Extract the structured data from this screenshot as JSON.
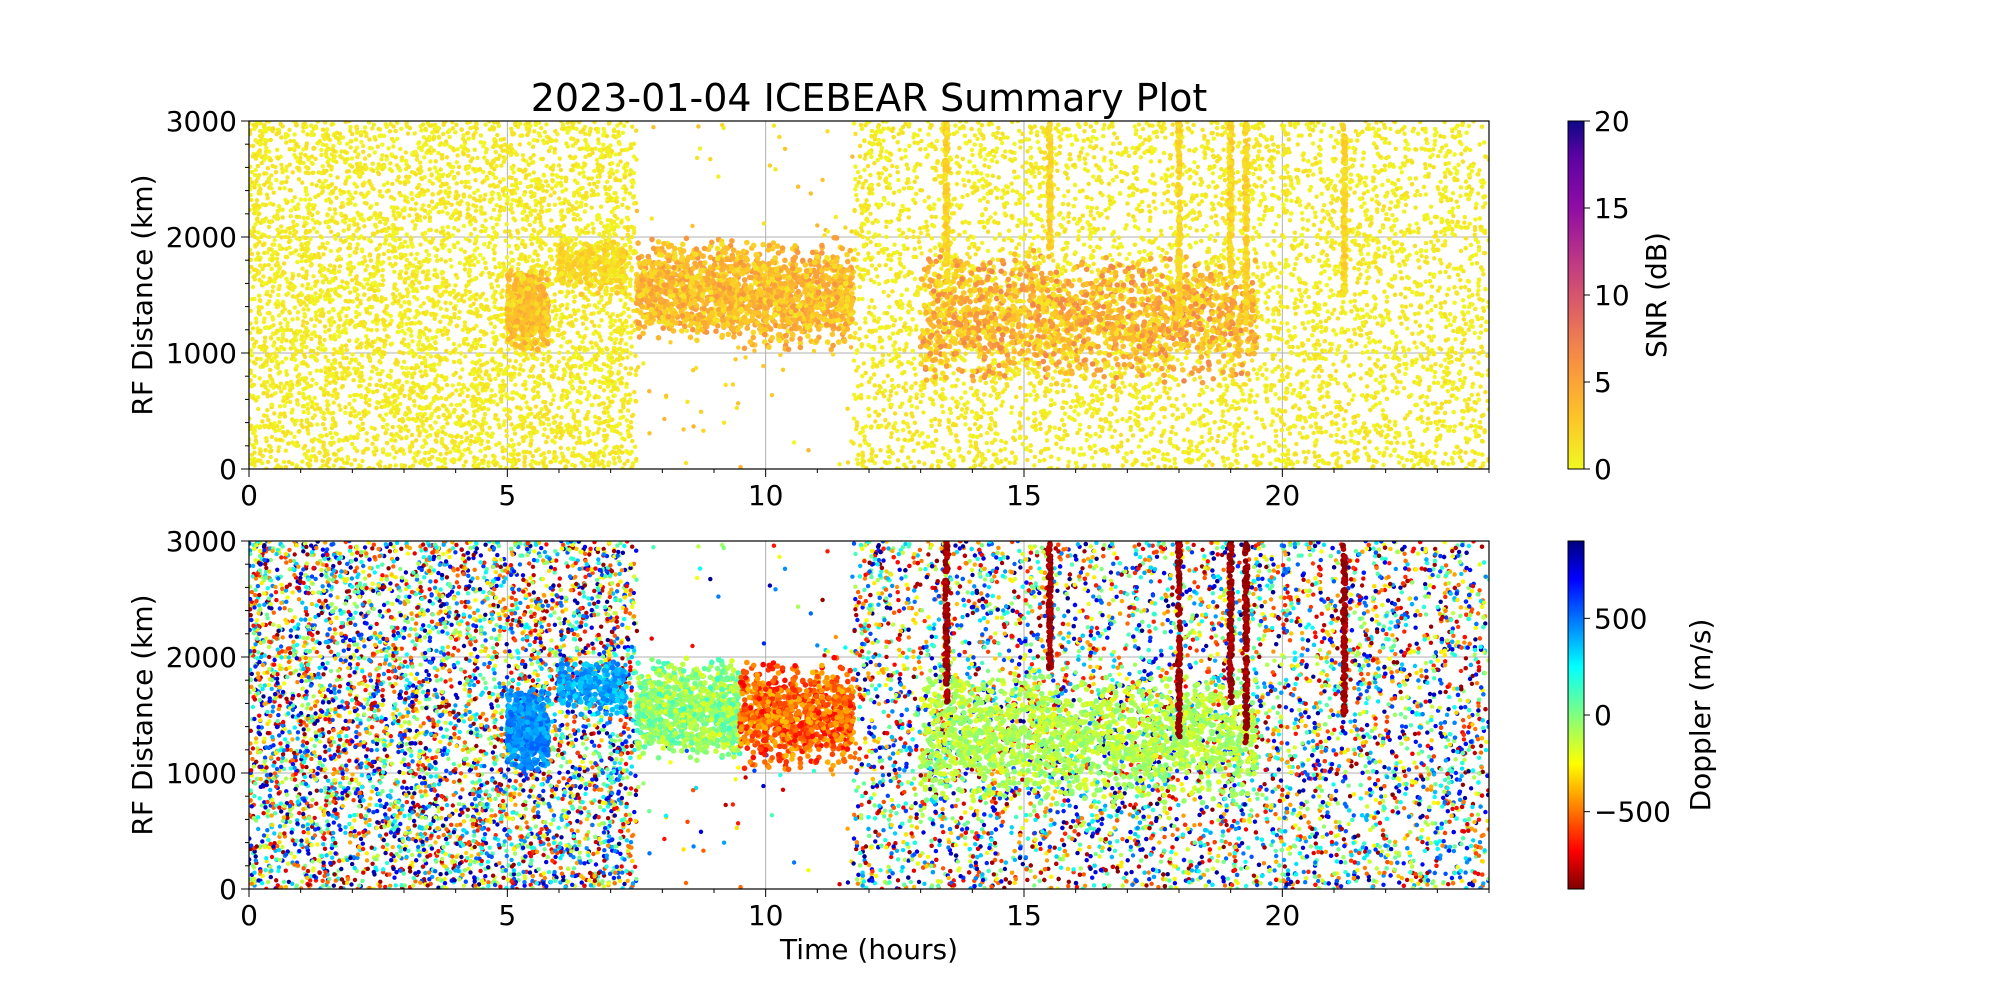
{
  "chart_data": {
    "type": "scatter",
    "title": "2023-01-04 ICEBEAR Summary Plot",
    "panels": [
      {
        "name": "snr",
        "ylabel": "RF Distance (km)",
        "xlabel": "",
        "xlim": [
          0,
          24
        ],
        "ylim": [
          0,
          3000
        ],
        "xticks": [
          "0",
          "5",
          "10",
          "15",
          "20"
        ],
        "yticks": [
          "0",
          "1000",
          "2000",
          "3000"
        ],
        "grid": true,
        "colorbar": {
          "label": "SNR (dB)",
          "range": [
            0,
            20
          ],
          "ticks": [
            "0",
            "5",
            "10",
            "15",
            "20"
          ],
          "colormap": "plasma_r"
        }
      },
      {
        "name": "doppler",
        "ylabel": "RF Distance (km)",
        "xlabel": "Time (hours)",
        "xlim": [
          0,
          24
        ],
        "ylim": [
          0,
          3000
        ],
        "xticks": [
          "0",
          "5",
          "10",
          "15",
          "20"
        ],
        "yticks": [
          "0",
          "1000",
          "2000",
          "3000"
        ],
        "grid": true,
        "colorbar": {
          "label": "Doppler (m/s)",
          "range": [
            -900,
            900
          ],
          "ticks": [
            "500",
            "0",
            "−500"
          ],
          "colormap": "jet"
        }
      }
    ],
    "point_groups": [
      {
        "kind": "noise",
        "t": [
          0,
          7.5
        ],
        "range_km": [
          0,
          3000
        ],
        "count": 5200,
        "snr": [
          0,
          1.5
        ],
        "doppler": "random"
      },
      {
        "kind": "noise",
        "t": [
          7.5,
          11.7
        ],
        "range_km": [
          0,
          3000
        ],
        "count": 90,
        "snr": [
          0,
          4
        ],
        "doppler": "random"
      },
      {
        "kind": "noise",
        "t": [
          11.7,
          24
        ],
        "range_km": [
          0,
          3000
        ],
        "count": 7000,
        "snr": [
          0,
          1.5
        ],
        "doppler": "random"
      },
      {
        "kind": "echo",
        "t": [
          5.0,
          5.8
        ],
        "range_km": [
          1000,
          1750
        ],
        "count": 500,
        "snr": [
          1,
          5
        ],
        "doppler": [
          350,
          550
        ]
      },
      {
        "kind": "echo",
        "t": [
          6.0,
          7.3
        ],
        "range_km": [
          1500,
          2000
        ],
        "count": 260,
        "snr": [
          0.5,
          3
        ],
        "doppler": [
          300,
          500
        ]
      },
      {
        "kind": "echo",
        "t": [
          7.5,
          9.5
        ],
        "range_km": [
          1100,
          2000
        ],
        "count": 900,
        "snr": [
          1,
          6
        ],
        "doppler": [
          -200,
          150
        ]
      },
      {
        "kind": "echo",
        "t": [
          9.5,
          11.7
        ],
        "range_km": [
          1000,
          2000
        ],
        "count": 900,
        "snr": [
          1,
          6
        ],
        "doppler": [
          -700,
          -350
        ]
      },
      {
        "kind": "echo",
        "t": [
          13,
          19.5
        ],
        "range_km": [
          700,
          1900
        ],
        "count": 1500,
        "snr": [
          1,
          7
        ],
        "doppler": [
          -200,
          0
        ]
      },
      {
        "kind": "streak",
        "t": [
          13.5,
          13.5
        ],
        "range_km": [
          1600,
          3000
        ],
        "count": 120,
        "snr": [
          1,
          3
        ],
        "doppler": [
          -900,
          -800
        ]
      },
      {
        "kind": "streak",
        "t": [
          15.5,
          15.5
        ],
        "range_km": [
          1900,
          3000
        ],
        "count": 100,
        "snr": [
          1,
          3
        ],
        "doppler": [
          -900,
          -800
        ]
      },
      {
        "kind": "streak",
        "t": [
          18.0,
          18.0
        ],
        "range_km": [
          1300,
          3000
        ],
        "count": 140,
        "snr": [
          1,
          3
        ],
        "doppler": [
          -900,
          -800
        ]
      },
      {
        "kind": "streak",
        "t": [
          19.0,
          19.0
        ],
        "range_km": [
          1600,
          3000
        ],
        "count": 120,
        "snr": [
          1,
          3
        ],
        "doppler": [
          -900,
          -800
        ]
      },
      {
        "kind": "streak",
        "t": [
          19.3,
          19.3
        ],
        "range_km": [
          1250,
          3000
        ],
        "count": 140,
        "snr": [
          1,
          3
        ],
        "doppler": [
          -900,
          -800
        ]
      },
      {
        "kind": "streak",
        "t": [
          21.2,
          21.2
        ],
        "range_km": [
          1500,
          3000
        ],
        "count": 120,
        "snr": [
          1,
          3
        ],
        "doppler": [
          -900,
          -800
        ]
      }
    ]
  }
}
